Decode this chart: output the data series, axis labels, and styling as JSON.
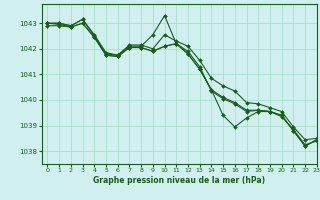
{
  "title": "Graphe pression niveau de la mer (hPa)",
  "bg_color": "#cff0ee",
  "grid_color": "#aaddcc",
  "line_color": "#1a5c1a",
  "marker_color": "#1a5c1a",
  "xlim": [
    -0.5,
    23
  ],
  "ylim": [
    1037.5,
    1043.75
  ],
  "yticks": [
    1038,
    1039,
    1040,
    1041,
    1042,
    1043
  ],
  "xticks": [
    0,
    1,
    2,
    3,
    4,
    5,
    6,
    7,
    8,
    9,
    10,
    11,
    12,
    13,
    14,
    15,
    16,
    17,
    18,
    19,
    20,
    21,
    22,
    23
  ],
  "series": [
    [
      1043.0,
      1043.0,
      1042.9,
      1043.15,
      1042.5,
      1041.8,
      1041.75,
      1042.1,
      1042.1,
      1042.55,
      1043.3,
      1042.2,
      1041.9,
      1041.3,
      1040.35,
      1040.05,
      1039.85,
      1039.55,
      1039.6,
      1039.55,
      1039.35,
      1038.85,
      1038.25,
      1038.4
    ],
    [
      1043.0,
      1043.0,
      1042.9,
      1043.15,
      1042.55,
      1041.85,
      1041.75,
      1042.15,
      1042.15,
      1042.0,
      1042.55,
      1042.3,
      1042.1,
      1041.55,
      1040.85,
      1040.55,
      1040.35,
      1039.9,
      1039.85,
      1039.7,
      1039.55,
      1038.95,
      1038.45,
      1038.5
    ],
    [
      1042.9,
      1042.9,
      1042.85,
      1043.0,
      1042.45,
      1041.75,
      1041.7,
      1042.05,
      1042.05,
      1041.9,
      1042.1,
      1042.2,
      1041.8,
      1041.2,
      1040.4,
      1040.1,
      1039.9,
      1039.6,
      1039.6,
      1039.55,
      1039.4,
      1038.8,
      1038.2,
      1038.45
    ],
    [
      1043.0,
      1042.95,
      1042.85,
      1043.0,
      1042.45,
      1041.75,
      1041.7,
      1042.05,
      1042.05,
      1041.9,
      1042.1,
      1042.2,
      1041.8,
      1041.2,
      1040.4,
      1039.4,
      1038.95,
      1039.3,
      1039.55,
      1039.55,
      1039.4,
      1038.8,
      1038.2,
      1038.45
    ]
  ]
}
